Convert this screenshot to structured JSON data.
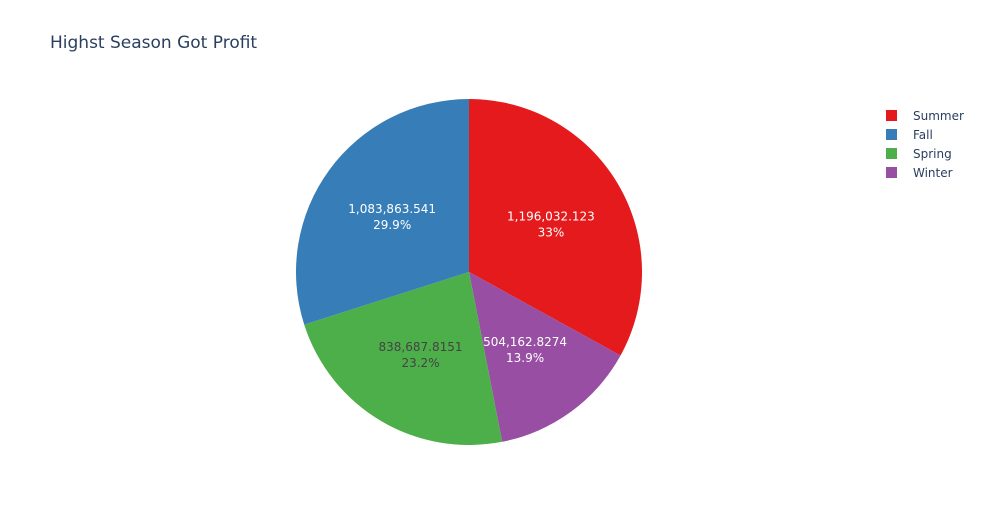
{
  "chart_data": {
    "type": "pie",
    "title": "Highst Season Got Profit",
    "slices": [
      {
        "label": "Summer",
        "value": 1196032.123,
        "value_text": "1,196,032.123",
        "percent_text": "33%",
        "color": "#e41a1c",
        "text_color": "#ffffff"
      },
      {
        "label": "Winter",
        "value": 504162.8274,
        "value_text": "504,162.8274",
        "percent_text": "13.9%",
        "color": "#984ea3",
        "text_color": "#ffffff"
      },
      {
        "label": "Spring",
        "value": 838687.8151,
        "value_text": "838,687.8151",
        "percent_text": "23.2%",
        "color": "#4daf4a",
        "text_color": "#444444"
      },
      {
        "label": "Fall",
        "value": 1083863.541,
        "value_text": "1,083,863.541",
        "percent_text": "29.9%",
        "color": "#377eb8",
        "text_color": "#ffffff"
      }
    ],
    "legend": {
      "placement": "top-right",
      "items": [
        {
          "label": "Summer",
          "color": "#e41a1c"
        },
        {
          "label": "Fall",
          "color": "#377eb8"
        },
        {
          "label": "Spring",
          "color": "#4daf4a"
        },
        {
          "label": "Winter",
          "color": "#984ea3"
        }
      ]
    }
  }
}
